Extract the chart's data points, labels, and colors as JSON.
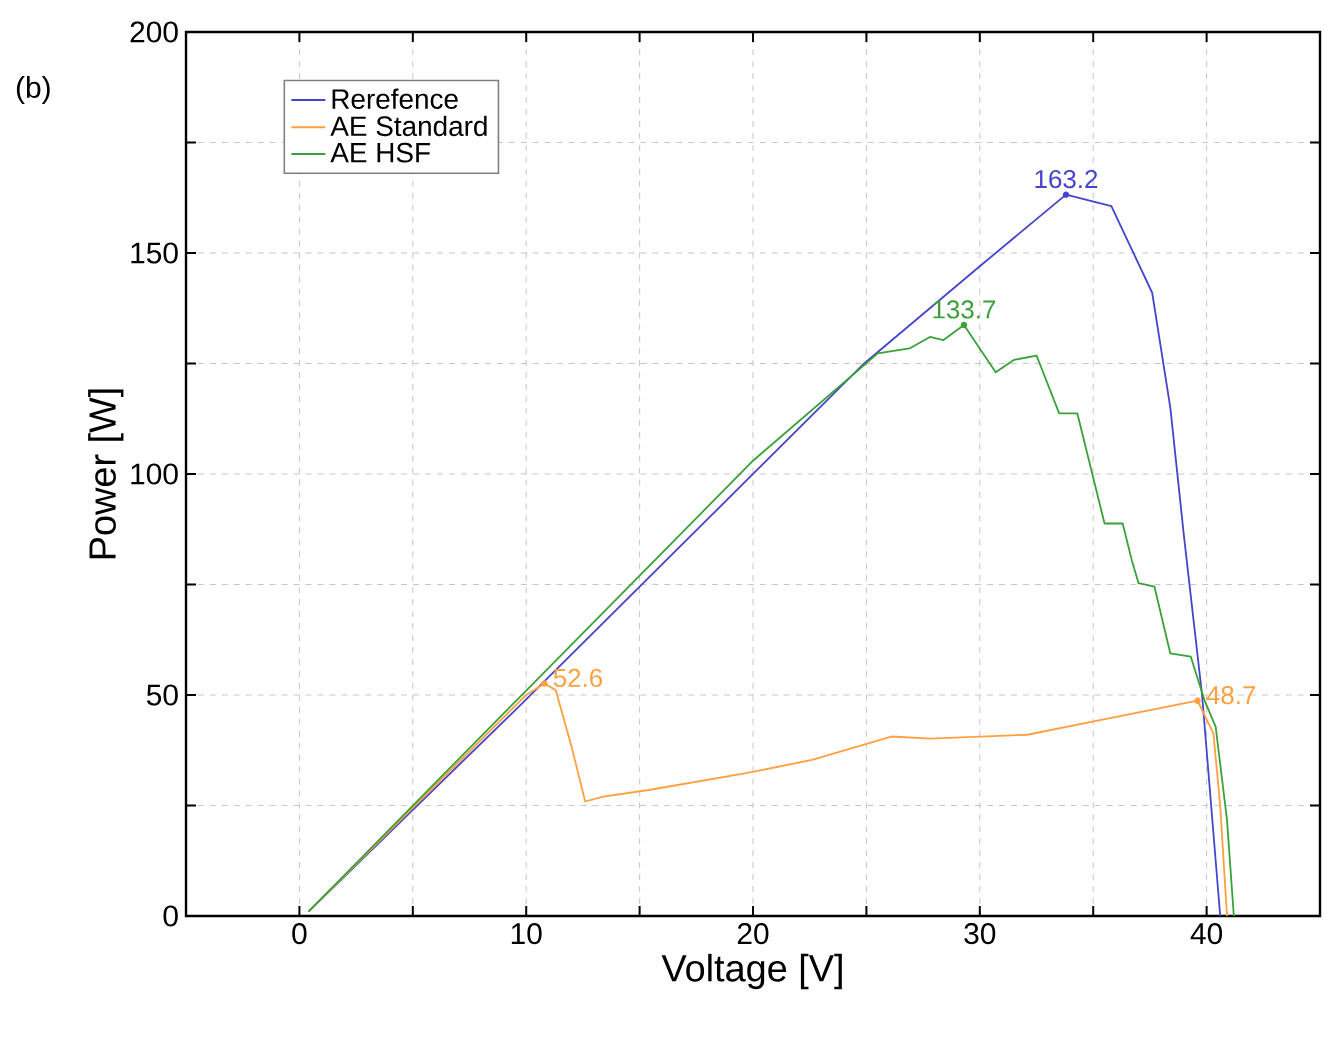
{
  "chart_data": {
    "type": "line",
    "xlabel": "Voltage [V]",
    "ylabel": "Power [W]",
    "xlim": [
      -5,
      45
    ],
    "ylim": [
      0,
      200
    ],
    "xticks": [
      0,
      {
        "value": 5,
        "label": null
      },
      10,
      {
        "value": 15,
        "label": null
      },
      20,
      {
        "value": 25,
        "label": null
      },
      30,
      {
        "value": 35,
        "label": null
      },
      40
    ],
    "yticks": [
      0,
      {
        "value": 25,
        "label": null
      },
      50,
      {
        "value": 75,
        "label": null
      },
      100,
      {
        "value": 125,
        "label": null
      },
      150,
      {
        "value": 175,
        "label": null
      },
      200
    ],
    "grid": true,
    "legend": "top left",
    "line_style": "solid",
    "marker": "none",
    "series": [
      {
        "name": "Rerefence",
        "color": "#4444cc",
        "x": [
          0.4,
          10,
          20,
          24.9,
          30,
          33.8,
          35.8,
          37.6,
          38.4,
          39.0,
          39.8,
          40.6
        ],
        "values": [
          1,
          49,
          100,
          125,
          147,
          163.2,
          160.6,
          141,
          115,
          86,
          50,
          0
        ]
      },
      {
        "name": "AE Standard",
        "color": "#ffa040",
        "x": [
          0.4,
          10,
          10.8,
          11.3,
          12.0,
          12.6,
          13.4,
          15.4,
          19.7,
          22.6,
          26.1,
          27.8,
          32.1,
          35.3,
          39.6,
          40.3,
          40.6,
          40.9
        ],
        "values": [
          1,
          50,
          52.6,
          51.1,
          38.3,
          25.9,
          27,
          28.5,
          32.3,
          35.3,
          40.6,
          40.1,
          41,
          44.3,
          48.7,
          41.3,
          24.9,
          0
        ]
      },
      {
        "name": "AE HSF",
        "color": "#3aa03a",
        "x": [
          0.4,
          10,
          20,
          25.5,
          26.9,
          27.8,
          28.4,
          29.3,
          30.7,
          31.5,
          32.5,
          33.5,
          34.3,
          35.5,
          36.3,
          36.7,
          37.0,
          37.7,
          38.4,
          39.3,
          39.9,
          40.4,
          40.9,
          41.2
        ],
        "values": [
          1,
          51,
          103,
          127.3,
          128.4,
          131,
          130.3,
          133.7,
          123,
          125.8,
          126.8,
          113.7,
          113.7,
          88.8,
          88.8,
          80.5,
          75.3,
          74.5,
          59.4,
          58.7,
          48.9,
          42.8,
          21.7,
          0
        ]
      }
    ],
    "annotations": [
      {
        "text": "163.2",
        "x": 33.8,
        "y": 163.2
      },
      {
        "text": "133.7",
        "x": 29.3,
        "y": 133.7
      },
      {
        "text": "52.6",
        "x": 10.8,
        "y": 52.6
      },
      {
        "text": "48.7",
        "x": 39.6,
        "y": 48.7
      },
      "(b)"
    ]
  }
}
